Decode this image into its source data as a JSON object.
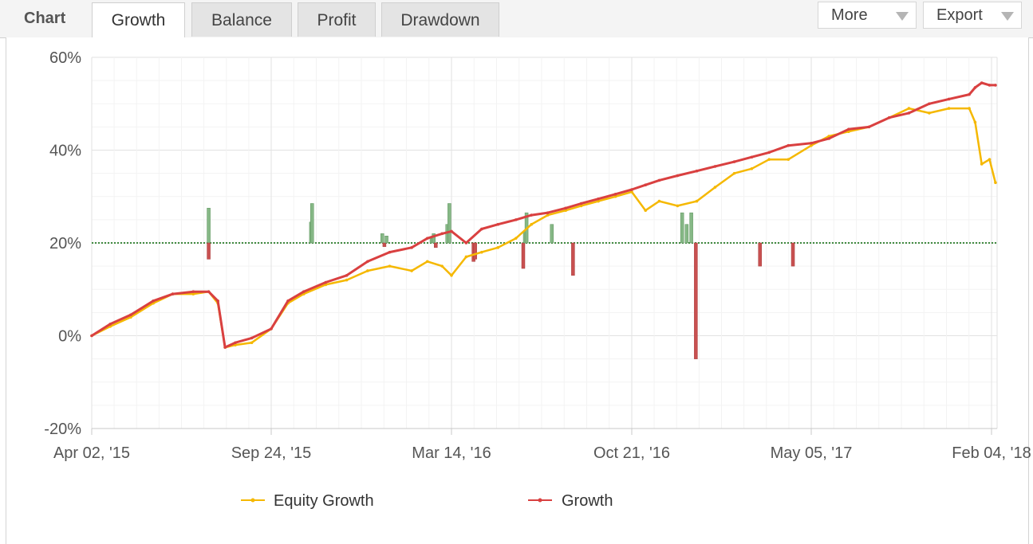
{
  "header": {
    "chart_label": "Chart",
    "tabs": [
      {
        "label": "Growth",
        "active": true
      },
      {
        "label": "Balance",
        "active": false
      },
      {
        "label": "Profit",
        "active": false
      },
      {
        "label": "Drawdown",
        "active": false
      }
    ],
    "more_label": "More",
    "export_label": "Export"
  },
  "colors": {
    "equity": "#f5b800",
    "growth": "#d94040",
    "bar_positive": "#86b886",
    "bar_negative": "#c85050",
    "grid": "#e6e6e6"
  },
  "chart_data": {
    "type": "line",
    "title": "",
    "ylabel": "",
    "xlabel": "",
    "ylim": [
      -20,
      60
    ],
    "y_ticks": [
      "60%",
      "40%",
      "20%",
      "0%",
      "-20%"
    ],
    "x_ticks": [
      "Apr 02, '15",
      "Sep 24, '15",
      "Mar 14, '16",
      "Oct 21, '16",
      "May 05, '17",
      "Feb 04, '18"
    ],
    "grid": true,
    "legend_position": "bottom",
    "series": [
      {
        "name": "Equity Growth",
        "x": [
          "2015-04-02",
          "2015-04-20",
          "2015-05-10",
          "2015-06-01",
          "2015-06-20",
          "2015-07-10",
          "2015-07-25",
          "2015-08-03",
          "2015-08-10",
          "2015-08-20",
          "2015-09-05",
          "2015-09-24",
          "2015-10-10",
          "2015-10-25",
          "2015-11-15",
          "2015-12-05",
          "2015-12-25",
          "2016-01-15",
          "2016-02-05",
          "2016-02-20",
          "2016-03-05",
          "2016-03-14",
          "2016-04-01",
          "2016-04-20",
          "2016-05-10",
          "2016-06-01",
          "2016-06-20",
          "2016-07-10",
          "2016-08-01",
          "2016-08-20",
          "2016-09-10",
          "2016-10-01",
          "2016-10-21",
          "2016-11-05",
          "2016-11-20",
          "2016-12-10",
          "2016-12-31",
          "2017-01-20",
          "2017-02-10",
          "2017-03-01",
          "2017-03-20",
          "2017-04-10",
          "2017-05-05",
          "2017-06-01",
          "2017-07-01",
          "2017-08-01",
          "2017-09-01",
          "2017-10-01",
          "2017-11-01",
          "2017-12-01",
          "2018-01-01",
          "2018-01-10",
          "2018-01-20",
          "2018-02-01",
          "2018-02-10"
        ],
        "values": [
          0,
          2,
          4,
          7,
          9,
          9,
          9.5,
          7,
          -2.5,
          -2,
          -1.5,
          1.5,
          7,
          9,
          11,
          12,
          14,
          15,
          14,
          16,
          15,
          13,
          17,
          18,
          19,
          21,
          24,
          26,
          27,
          28,
          29,
          30,
          31,
          27,
          29,
          28,
          29,
          32,
          35,
          36,
          38,
          38,
          41,
          43,
          44,
          45,
          47,
          49,
          48,
          49,
          49,
          46,
          37,
          38,
          33
        ],
        "dots": true
      },
      {
        "name": "Growth",
        "x": [
          "2015-04-02",
          "2015-04-20",
          "2015-05-10",
          "2015-06-01",
          "2015-06-20",
          "2015-07-10",
          "2015-07-25",
          "2015-08-03",
          "2015-08-10",
          "2015-08-20",
          "2015-09-05",
          "2015-09-24",
          "2015-10-10",
          "2015-10-25",
          "2015-11-15",
          "2015-12-05",
          "2015-12-25",
          "2016-01-15",
          "2016-02-05",
          "2016-02-20",
          "2016-03-05",
          "2016-03-14",
          "2016-04-01",
          "2016-04-20",
          "2016-05-10",
          "2016-06-01",
          "2016-06-20",
          "2016-07-10",
          "2016-08-01",
          "2016-08-20",
          "2016-09-10",
          "2016-10-01",
          "2016-10-21",
          "2016-11-05",
          "2016-11-20",
          "2016-12-10",
          "2016-12-31",
          "2017-01-20",
          "2017-02-10",
          "2017-03-01",
          "2017-03-20",
          "2017-04-10",
          "2017-05-05",
          "2017-06-01",
          "2017-07-01",
          "2017-08-01",
          "2017-09-01",
          "2017-10-01",
          "2017-11-01",
          "2017-12-01",
          "2018-01-01",
          "2018-01-10",
          "2018-01-20",
          "2018-02-01",
          "2018-02-10"
        ],
        "values": [
          0,
          2.5,
          4.5,
          7.5,
          9,
          9.5,
          9.5,
          7.5,
          -2.5,
          -1.5,
          -0.5,
          1.5,
          7.5,
          9.5,
          11.5,
          13,
          16,
          18,
          19,
          21,
          22,
          22.5,
          20,
          23,
          24,
          25,
          26,
          26.5,
          27.5,
          28.5,
          29.5,
          30.5,
          31.5,
          32.5,
          33.5,
          34.5,
          35.5,
          36.5,
          37.5,
          38.5,
          39.5,
          41,
          41.5,
          42.5,
          44.5,
          45,
          47,
          48,
          50,
          51,
          52,
          53.5,
          54.5,
          54,
          54
        ]
      },
      {
        "name": "",
        "type": "bar",
        "baseline": 20,
        "x": [
          "2015-07-25",
          "2015-07-25",
          "2015-11-01",
          "2015-11-02",
          "2016-01-08",
          "2016-01-10",
          "2016-01-12",
          "2016-02-24",
          "2016-02-26",
          "2016-02-28",
          "2016-03-10",
          "2016-03-12",
          "2016-04-10",
          "2016-04-12",
          "2016-06-10",
          "2016-06-12",
          "2016-06-14",
          "2016-07-15",
          "2016-08-10",
          "2016-12-15",
          "2016-12-20",
          "2016-12-25",
          "2016-12-30",
          "2017-03-10",
          "2017-04-15"
        ],
        "values": [
          7.5,
          -3.5,
          4.5,
          8.5,
          2,
          -0.8,
          1.5,
          1,
          2,
          -1,
          4,
          8.5,
          -4,
          -3.5,
          -5.5,
          2.5,
          6.5,
          4,
          -7,
          6.5,
          4,
          6.5,
          -25,
          -5,
          -5
        ]
      }
    ]
  }
}
